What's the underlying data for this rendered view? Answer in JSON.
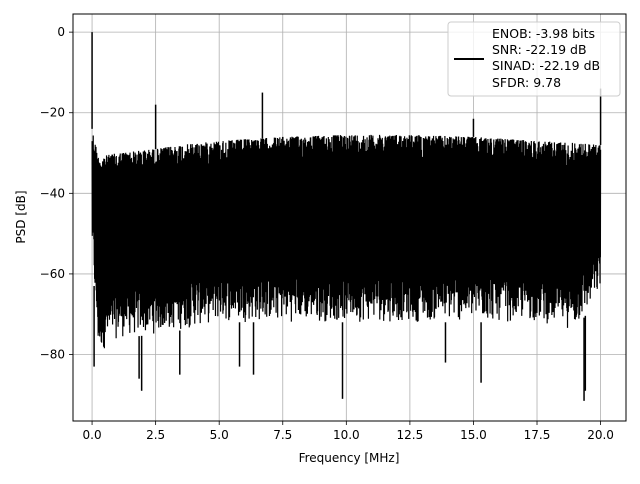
{
  "chart_data": {
    "type": "line",
    "title": "",
    "xlabel": "Frequency [MHz]",
    "ylabel": "PSD [dB]",
    "xlim": [
      -0.75,
      21.0
    ],
    "ylim": [
      -96.5,
      4.5
    ],
    "grid": true,
    "x_ticks": [
      0.0,
      2.5,
      5.0,
      7.5,
      10.0,
      12.5,
      15.0,
      17.5,
      20.0
    ],
    "x_tick_labels": [
      "0.0",
      "2.5",
      "5.0",
      "7.5",
      "10.0",
      "12.5",
      "15.0",
      "17.5",
      "20.0"
    ],
    "y_ticks": [
      0,
      -20,
      -40,
      -60,
      -80
    ],
    "y_tick_labels": [
      "0",
      "−20",
      "−40",
      "−60",
      "−80"
    ],
    "legend_position": "top-right",
    "series": [
      {
        "name": "",
        "color": "#000000",
        "x_range": [
          0.0,
          20.0
        ],
        "approx_envelope": {
          "x": [
            0.0,
            0.25,
            1.0,
            2.5,
            3.5,
            5.0,
            7.5,
            10.0,
            12.5,
            15.0,
            17.5,
            19.0,
            20.0
          ],
          "upper": [
            -24,
            -31,
            -30,
            -29,
            -28,
            -27,
            -26,
            -25.5,
            -25.5,
            -26,
            -27,
            -27.5,
            -28
          ],
          "lower": [
            -55,
            -80,
            -76,
            -75,
            -74,
            -72,
            -72,
            -72,
            -72,
            -72,
            -72,
            -74,
            -65
          ]
        },
        "peaks": [
          {
            "x": 0.0,
            "y": 0.0
          },
          {
            "x": 2.5,
            "y": -18
          },
          {
            "x": 6.7,
            "y": -15
          },
          {
            "x": 15.0,
            "y": -21.5
          },
          {
            "x": 20.0,
            "y": -14
          }
        ],
        "dips": [
          {
            "x": 0.08,
            "y": -83
          },
          {
            "x": 1.85,
            "y": -86
          },
          {
            "x": 1.95,
            "y": -89
          },
          {
            "x": 3.45,
            "y": -85
          },
          {
            "x": 5.8,
            "y": -83
          },
          {
            "x": 6.35,
            "y": -85
          },
          {
            "x": 9.85,
            "y": -91
          },
          {
            "x": 13.9,
            "y": -82
          },
          {
            "x": 15.3,
            "y": -87
          },
          {
            "x": 19.35,
            "y": -91.5
          },
          {
            "x": 19.4,
            "y": -89
          }
        ]
      }
    ],
    "legend": {
      "lines": [
        "ENOB: -3.98 bits",
        "SNR: -22.19 dB",
        "SINAD: -22.19 dB",
        "SFDR: 9.78"
      ]
    }
  }
}
